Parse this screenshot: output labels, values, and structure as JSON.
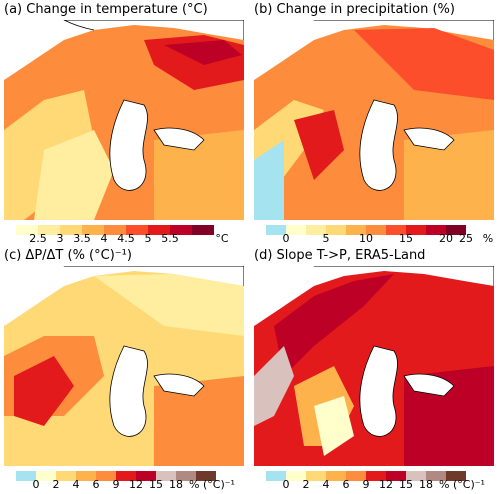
{
  "panels": [
    {
      "title": "(a) Change in temperature (°C)",
      "ticks": [
        "2.5",
        "3",
        "3.5",
        "4",
        "4.5",
        "5",
        "5.5"
      ],
      "unit": "°C",
      "colors": [
        "#ffffcc",
        "#ffeda0",
        "#fed976",
        "#feb24c",
        "#fd8d3c",
        "#fc4e2a",
        "#e31a1c",
        "#bd0026",
        "#800026"
      ]
    },
    {
      "title": "(b) Change in precipitation (%)",
      "ticks": [
        "0",
        "5",
        "10",
        "15",
        "20",
        "25"
      ],
      "unit": "%",
      "colors": [
        "#a6e3f0",
        "#ffffcc",
        "#ffeda0",
        "#fed976",
        "#feb24c",
        "#fd8d3c",
        "#fc4e2a",
        "#e31a1c",
        "#bd0026",
        "#800026"
      ]
    },
    {
      "title": "(c) ΔP/ΔT (% (°C)⁻¹)",
      "ticks": [
        "0",
        "2",
        "4",
        "6",
        "9",
        "12",
        "15",
        "18"
      ],
      "unit": "% (°C)⁻¹",
      "colors": [
        "#a6e3f0",
        "#ffffcc",
        "#fed976",
        "#feb24c",
        "#fd8d3c",
        "#e31a1c",
        "#bd0026",
        "#d9c2bd",
        "#b08a82",
        "#6e3b2a"
      ]
    },
    {
      "title": "(d) Slope T->P, ERA5-Land",
      "ticks": [
        "0",
        "2",
        "4",
        "6",
        "9",
        "12",
        "15",
        "18"
      ],
      "unit": "% (°C)⁻¹",
      "colors": [
        "#a6e3f0",
        "#ffffcc",
        "#fed976",
        "#feb24c",
        "#fd8d3c",
        "#e31a1c",
        "#bd0026",
        "#d9c2bd",
        "#b08a82",
        "#6e3b2a"
      ]
    }
  ]
}
